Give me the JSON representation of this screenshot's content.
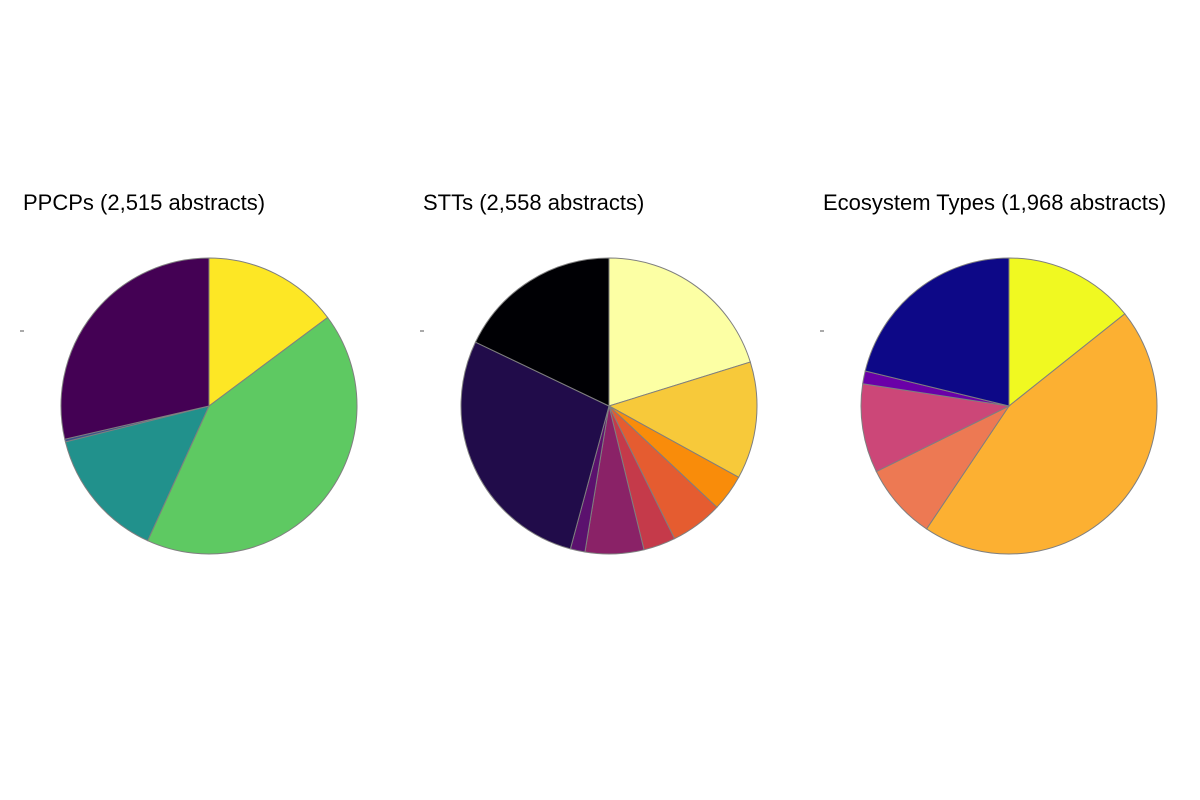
{
  "chart_data": [
    {
      "type": "pie",
      "title": "PPCPs (2,515 abstracts)",
      "start_angle_deg": 0,
      "direction": "clockwise",
      "slices": [
        {
          "value": 14.8,
          "color": "#FDE725"
        },
        {
          "value": 42.0,
          "color": "#5EC962"
        },
        {
          "value": 14.3,
          "color": "#21918C"
        },
        {
          "value": 0.3,
          "color": "#3B528B"
        },
        {
          "value": 28.6,
          "color": "#440154"
        }
      ]
    },
    {
      "type": "pie",
      "title": "STTs (2,558 abstracts)",
      "start_angle_deg": 0,
      "direction": "clockwise",
      "slices": [
        {
          "value": 20.2,
          "color": "#FCFFA4"
        },
        {
          "value": 12.8,
          "color": "#F7C93A"
        },
        {
          "value": 4.0,
          "color": "#F98C0A"
        },
        {
          "value": 5.7,
          "color": "#E55C30"
        },
        {
          "value": 3.5,
          "color": "#C53A4A"
        },
        {
          "value": 6.4,
          "color": "#8A2267"
        },
        {
          "value": 1.6,
          "color": "#5B116E"
        },
        {
          "value": 27.9,
          "color": "#210C4A"
        },
        {
          "value": 17.9,
          "color": "#000004"
        }
      ]
    },
    {
      "type": "pie",
      "title": "Ecosystem Types (1,968 abstracts)",
      "start_angle_deg": 0,
      "direction": "clockwise",
      "slices": [
        {
          "value": 14.3,
          "color": "#F0F921"
        },
        {
          "value": 45.1,
          "color": "#FCB032"
        },
        {
          "value": 8.3,
          "color": "#ED7953"
        },
        {
          "value": 9.7,
          "color": "#CC4778"
        },
        {
          "value": 1.4,
          "color": "#6A00A8"
        },
        {
          "value": 21.2,
          "color": "#0D0887"
        }
      ]
    }
  ]
}
